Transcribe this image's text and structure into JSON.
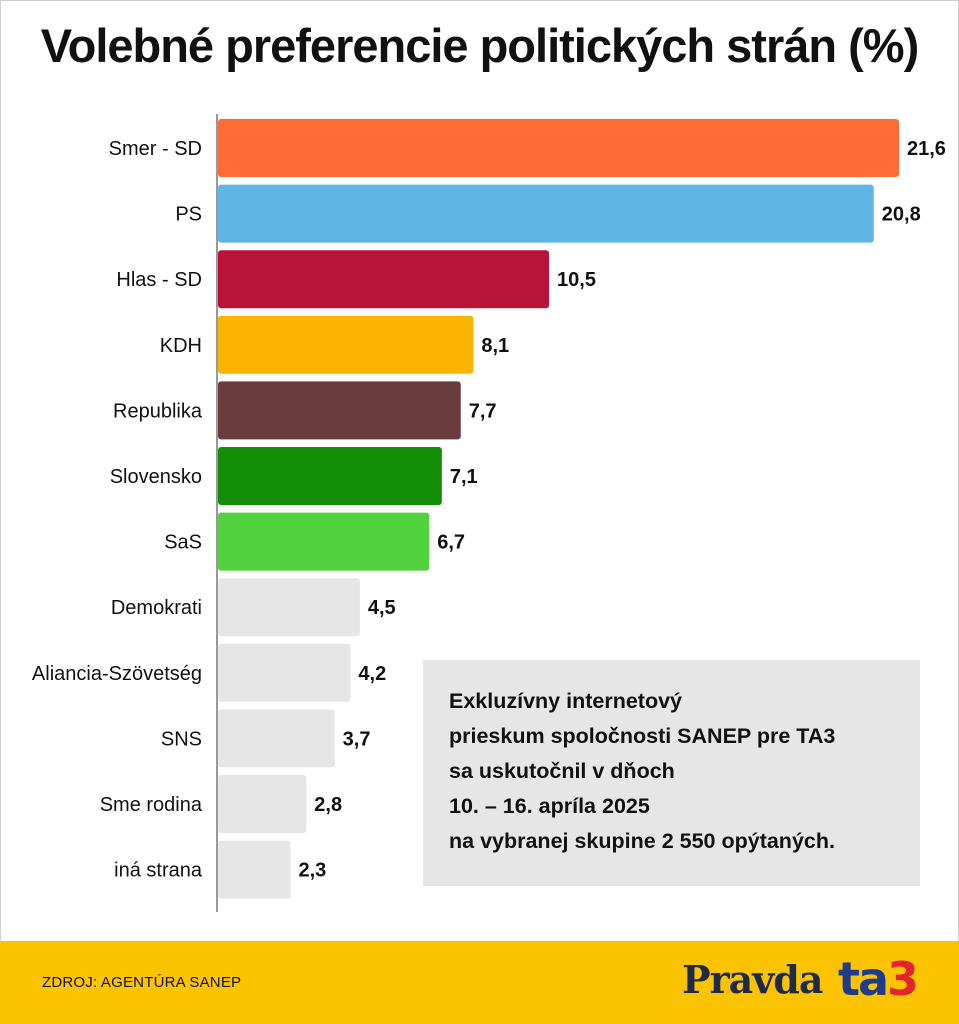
{
  "title": "Volebné preferencie politických strán (%)",
  "chart_data": {
    "type": "bar",
    "orientation": "horizontal",
    "categories": [
      "Smer - SD",
      "PS",
      "Hlas - SD",
      "KDH",
      "Republika",
      "Slovensko",
      "SaS",
      "Demokrati",
      "Aliancia-Szövetség",
      "SNS",
      "Sme rodina",
      "iná strana"
    ],
    "values": [
      21.6,
      20.8,
      10.5,
      8.1,
      7.7,
      7.1,
      6.7,
      4.5,
      4.2,
      3.7,
      2.8,
      2.3
    ],
    "value_labels": [
      "21,6",
      "20,8",
      "10,5",
      "8,1",
      "7,7",
      "7,1",
      "6,7",
      "4,5",
      "4,2",
      "3,7",
      "2,8",
      "2,3"
    ],
    "colors": [
      "#ff6b35",
      "#5fb6e2",
      "#b8143a",
      "#fab400",
      "#6b3c3d",
      "#138e06",
      "#52d23e",
      "#e6e6e6",
      "#e6e6e6",
      "#e6e6e6",
      "#e6e6e6",
      "#e6e6e6"
    ],
    "xlim": [
      0,
      21.6
    ],
    "grid": false
  },
  "note": {
    "lines": [
      "Exkluzívny internetový",
      "prieskum spoločnosti SANEP pre TA3",
      "sa uskutočnil v dňoch",
      "10. – 16. apríla 2025",
      "na vybranej skupine 2 550 opýtaných."
    ]
  },
  "footer": {
    "source": "ZDROJ: AGENTÚRA SANEP",
    "logo_pravda": "Pravda",
    "logo_ta3_ta": "ta",
    "logo_ta3_3": "3"
  }
}
